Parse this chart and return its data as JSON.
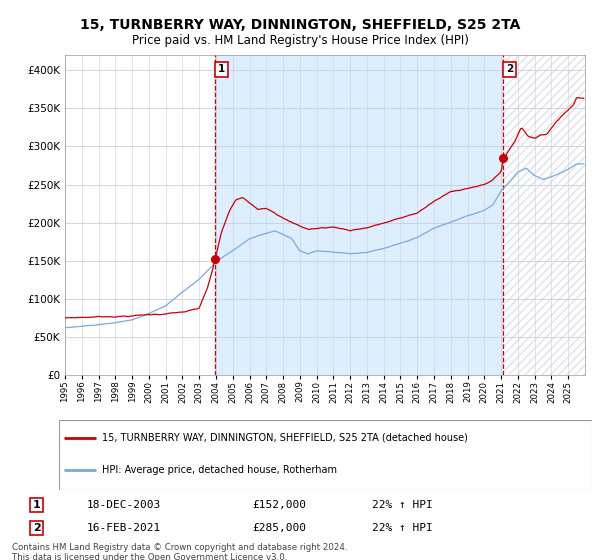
{
  "title": "15, TURNBERRY WAY, DINNINGTON, SHEFFIELD, S25 2TA",
  "subtitle": "Price paid vs. HM Land Registry's House Price Index (HPI)",
  "legend_line1": "15, TURNBERRY WAY, DINNINGTON, SHEFFIELD, S25 2TA (detached house)",
  "legend_line2": "HPI: Average price, detached house, Rotherham",
  "transaction1_label": "1",
  "transaction1_date": "18-DEC-2003",
  "transaction1_price": "£152,000",
  "transaction1_hpi": "22% ↑ HPI",
  "transaction2_label": "2",
  "transaction2_date": "16-FEB-2021",
  "transaction2_price": "£285,000",
  "transaction2_hpi": "22% ↑ HPI",
  "footer1": "Contains HM Land Registry data © Crown copyright and database right 2024.",
  "footer2": "This data is licensed under the Open Government Licence v3.0.",
  "red_color": "#cc0000",
  "blue_color": "#7aaadd",
  "bg_chart": "#ffffff",
  "bg_shaded": "#ddeeff",
  "grid_color": "#ccccdd",
  "vline_color": "#cc0000",
  "year_start": 1995,
  "year_end": 2026,
  "ylim_min": 0,
  "ylim_max": 420000,
  "transaction1_year": 2003.96,
  "transaction1_value": 152000,
  "transaction2_year": 2021.12,
  "transaction2_value": 285000,
  "yticks": [
    0,
    50000,
    100000,
    150000,
    200000,
    250000,
    300000,
    350000,
    400000
  ]
}
